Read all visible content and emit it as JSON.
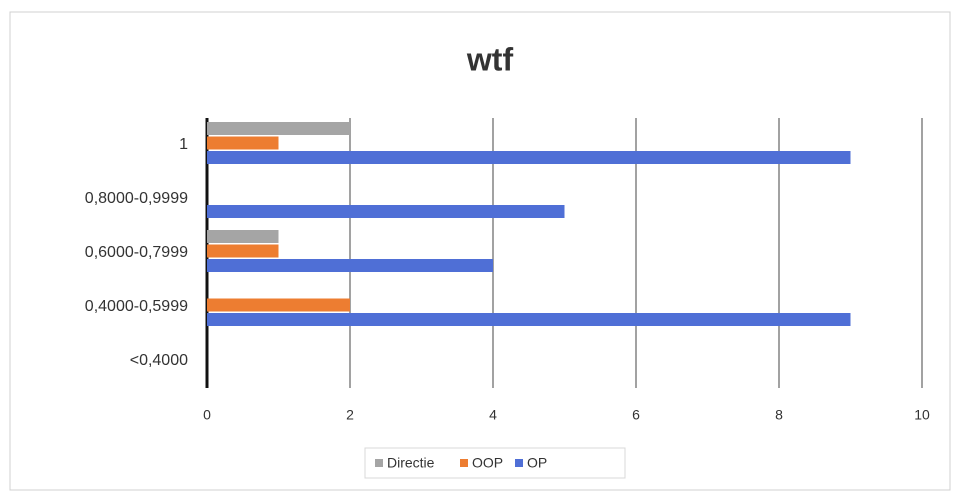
{
  "chart_data": {
    "type": "bar",
    "orientation": "horizontal",
    "title": "wtf",
    "categories": [
      "1",
      "0,8000-0,9999",
      "0,6000-0,7999",
      "0,4000-0,5999",
      "<0,4000"
    ],
    "series": [
      {
        "name": "Directie",
        "color": "#a5a5a5",
        "values": [
          2,
          0,
          1,
          0,
          0
        ]
      },
      {
        "name": "OOP",
        "color": "#ed7d31",
        "values": [
          1,
          0,
          1,
          2,
          0
        ]
      },
      {
        "name": "OP",
        "color": "#4f6fd6",
        "values": [
          9,
          5,
          4,
          9,
          0
        ]
      }
    ],
    "xlim": [
      0,
      10
    ],
    "xticks": [
      0,
      2,
      4,
      6,
      8,
      10
    ],
    "grid": true,
    "legend": "bottom"
  }
}
